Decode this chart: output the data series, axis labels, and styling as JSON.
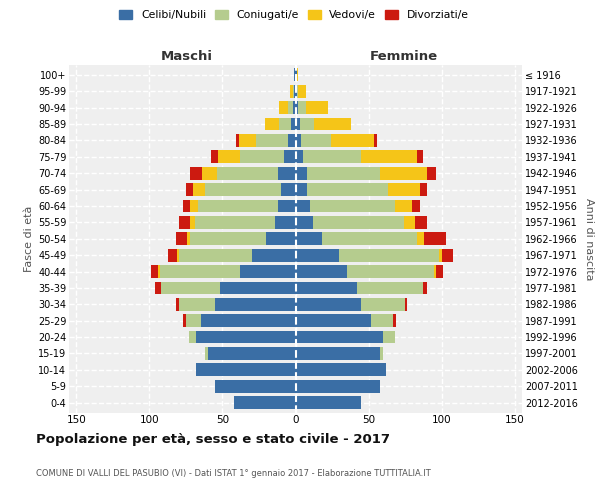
{
  "age_groups": [
    "0-4",
    "5-9",
    "10-14",
    "15-19",
    "20-24",
    "25-29",
    "30-34",
    "35-39",
    "40-44",
    "45-49",
    "50-54",
    "55-59",
    "60-64",
    "65-69",
    "70-74",
    "75-79",
    "80-84",
    "85-89",
    "90-94",
    "95-99",
    "100+"
  ],
  "birth_years": [
    "2012-2016",
    "2007-2011",
    "2002-2006",
    "1997-2001",
    "1992-1996",
    "1987-1991",
    "1982-1986",
    "1977-1981",
    "1972-1976",
    "1967-1971",
    "1962-1966",
    "1957-1961",
    "1952-1956",
    "1947-1951",
    "1942-1946",
    "1937-1941",
    "1932-1936",
    "1927-1931",
    "1922-1926",
    "1917-1921",
    "≤ 1916"
  ],
  "maschi": {
    "celibi": [
      42,
      55,
      68,
      60,
      68,
      65,
      55,
      52,
      38,
      30,
      20,
      14,
      12,
      10,
      12,
      8,
      5,
      3,
      2,
      1,
      1
    ],
    "coniugati": [
      0,
      0,
      0,
      2,
      5,
      10,
      25,
      40,
      55,
      50,
      52,
      55,
      55,
      52,
      42,
      30,
      22,
      8,
      3,
      1,
      0
    ],
    "vedovi": [
      0,
      0,
      0,
      0,
      0,
      0,
      0,
      0,
      1,
      1,
      2,
      3,
      5,
      8,
      10,
      15,
      12,
      10,
      6,
      2,
      0
    ],
    "divorziati": [
      0,
      0,
      0,
      0,
      0,
      2,
      2,
      4,
      5,
      6,
      8,
      8,
      5,
      5,
      8,
      5,
      2,
      0,
      0,
      0,
      0
    ]
  },
  "femmine": {
    "nubili": [
      45,
      58,
      62,
      58,
      60,
      52,
      45,
      42,
      35,
      30,
      18,
      12,
      10,
      8,
      8,
      5,
      4,
      3,
      2,
      1,
      1
    ],
    "coniugate": [
      0,
      0,
      0,
      2,
      8,
      15,
      30,
      45,
      60,
      68,
      65,
      62,
      58,
      55,
      50,
      40,
      20,
      10,
      5,
      1,
      0
    ],
    "vedove": [
      0,
      0,
      0,
      0,
      0,
      0,
      0,
      0,
      1,
      2,
      5,
      8,
      12,
      22,
      32,
      38,
      30,
      25,
      15,
      5,
      1
    ],
    "divorziate": [
      0,
      0,
      0,
      0,
      0,
      2,
      1,
      3,
      5,
      8,
      15,
      8,
      5,
      5,
      6,
      4,
      2,
      0,
      0,
      0,
      0
    ]
  },
  "colors": {
    "celibi": "#3a6ea5",
    "coniugati": "#b5cc8e",
    "vedovi": "#f5c518",
    "divorziati": "#cc1a10"
  },
  "xlim": 155,
  "title": "Popolazione per età, sesso e stato civile - 2017",
  "subtitle": "COMUNE DI VALLI DEL PASUBIO (VI) - Dati ISTAT 1° gennaio 2017 - Elaborazione TUTTITALIA.IT",
  "legend_labels": [
    "Celibi/Nubili",
    "Coniugati/e",
    "Vedovi/e",
    "Divorziati/e"
  ],
  "ylabel_left": "Fasce di età",
  "ylabel_right": "Anni di nascita",
  "label_maschi": "Maschi",
  "label_femmine": "Femmine",
  "bg_color": "#efefef"
}
